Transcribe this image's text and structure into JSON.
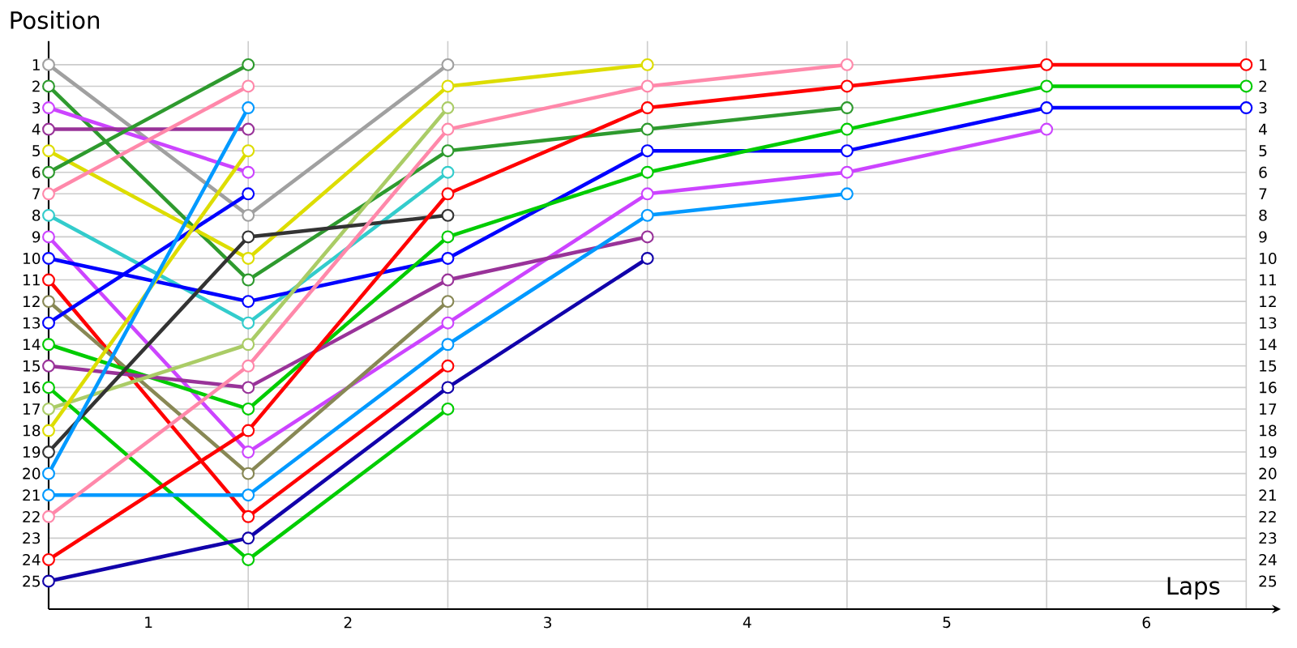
{
  "chart_data": {
    "type": "line",
    "xlabel": "Laps",
    "ylabel": "Position",
    "marker": "circle",
    "line_style": "solid",
    "grid": true,
    "xlim": [
      0,
      6
    ],
    "ylim": [
      26.3,
      -0.1
    ],
    "y2lim": [
      26.3,
      -0.1
    ],
    "xticks": [
      {
        "value": 0.5,
        "label": "1"
      },
      {
        "value": 1.5,
        "label": "2"
      },
      {
        "value": 2.5,
        "label": "3"
      },
      {
        "value": 3.5,
        "label": "4"
      },
      {
        "value": 4.5,
        "label": "5"
      },
      {
        "value": 5.5,
        "label": "6"
      },
      {
        "value": 1,
        "label": null
      },
      {
        "value": 2,
        "label": null
      },
      {
        "value": 3,
        "label": null
      },
      {
        "value": 4,
        "label": null
      },
      {
        "value": 5,
        "label": null
      },
      {
        "value": 6,
        "label": null
      }
    ],
    "yticks": [
      1,
      2,
      3,
      4,
      5,
      6,
      7,
      8,
      9,
      10,
      11,
      12,
      13,
      14,
      15,
      16,
      17,
      18,
      19,
      20,
      21,
      22,
      23,
      24,
      25
    ],
    "y2ticks": [
      1,
      2,
      3,
      4,
      5,
      6,
      7,
      8,
      9,
      10,
      11,
      12,
      13,
      14,
      15,
      16,
      17,
      18,
      19,
      20,
      21,
      22,
      23,
      24,
      25
    ],
    "series": [
      {
        "color": "#a0a0a0",
        "x": [
          0,
          1,
          2
        ],
        "values": [
          1,
          8,
          1
        ]
      },
      {
        "color": "#2e9a2e",
        "x": [
          0,
          1,
          2,
          3,
          4
        ],
        "values": [
          2,
          11,
          5,
          4,
          3
        ]
      },
      {
        "color": "#cc44ff",
        "x": [
          0,
          1
        ],
        "values": [
          3,
          6
        ]
      },
      {
        "color": "#993399",
        "x": [
          0,
          1
        ],
        "values": [
          4,
          4
        ]
      },
      {
        "color": "#dddd00",
        "x": [
          0,
          1,
          2,
          3
        ],
        "values": [
          5,
          10,
          2,
          1
        ]
      },
      {
        "color": "#2e9a2e",
        "x": [
          0,
          1
        ],
        "values": [
          6,
          1
        ]
      },
      {
        "color": "#ff88aa",
        "x": [
          0,
          1
        ],
        "values": [
          7,
          2
        ]
      },
      {
        "color": "#33cccc",
        "x": [
          0,
          1,
          2
        ],
        "values": [
          8,
          13,
          6
        ]
      },
      {
        "color": "#cc44ff",
        "x": [
          0,
          1,
          2,
          3,
          4,
          5
        ],
        "values": [
          9,
          19,
          13,
          7,
          6,
          4
        ]
      },
      {
        "color": "#0000ff",
        "x": [
          0,
          1,
          2,
          3,
          4,
          5,
          6
        ],
        "values": [
          10,
          12,
          10,
          5,
          5,
          3,
          3
        ]
      },
      {
        "color": "#ff0000",
        "x": [
          0,
          1,
          2
        ],
        "values": [
          11,
          22,
          15
        ]
      },
      {
        "color": "#888855",
        "x": [
          0,
          1,
          2
        ],
        "values": [
          12,
          20,
          12
        ]
      },
      {
        "color": "#0000ff",
        "x": [
          0,
          1
        ],
        "values": [
          13,
          7
        ]
      },
      {
        "color": "#00cc00",
        "x": [
          0,
          1,
          2,
          3,
          4,
          5,
          6
        ],
        "values": [
          14,
          17,
          9,
          6,
          4,
          2,
          2
        ]
      },
      {
        "color": "#993399",
        "x": [
          0,
          1,
          2,
          3
        ],
        "values": [
          15,
          16,
          11,
          9
        ]
      },
      {
        "color": "#00cc00",
        "x": [
          0,
          1,
          2
        ],
        "values": [
          16,
          24,
          17
        ]
      },
      {
        "color": "#aacc66",
        "x": [
          0,
          1,
          2
        ],
        "values": [
          17,
          14,
          3
        ]
      },
      {
        "color": "#dddd00",
        "x": [
          0,
          1
        ],
        "values": [
          18,
          5
        ]
      },
      {
        "color": "#333333",
        "x": [
          0,
          1,
          2
        ],
        "values": [
          19,
          9,
          8
        ]
      },
      {
        "color": "#0099ff",
        "x": [
          0,
          1
        ],
        "values": [
          20,
          3
        ]
      },
      {
        "color": "#0099ff",
        "x": [
          0,
          1,
          2,
          3,
          4
        ],
        "values": [
          21,
          21,
          14,
          8,
          7
        ]
      },
      {
        "color": "#ff88aa",
        "x": [
          0,
          1,
          2,
          3,
          4
        ],
        "values": [
          22,
          15,
          4,
          2,
          1
        ]
      },
      {
        "color": "#ff0000",
        "x": [
          0,
          1,
          2,
          3,
          4,
          5,
          6
        ],
        "values": [
          24,
          18,
          7,
          3,
          2,
          1,
          1
        ]
      },
      {
        "color": "#1100aa",
        "x": [
          0,
          1,
          2,
          3
        ],
        "values": [
          25,
          23,
          16,
          10
        ]
      }
    ]
  }
}
